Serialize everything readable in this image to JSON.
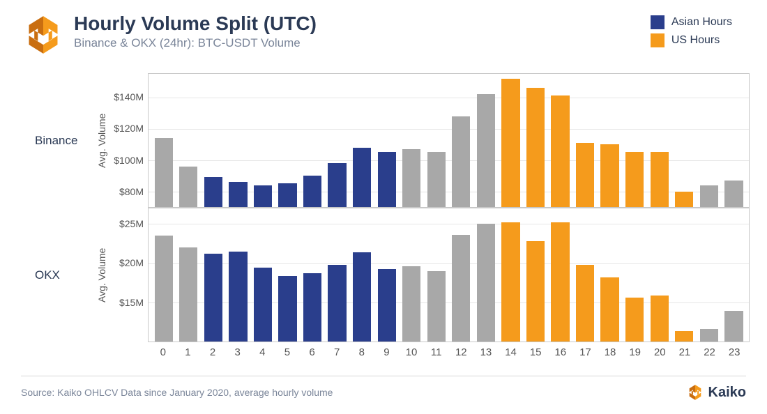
{
  "header": {
    "title": "Hourly Volume Split (UTC)",
    "subtitle": "Binance & OKX (24hr): BTC-USDT Volume"
  },
  "legend": [
    {
      "label": "Asian Hours",
      "color": "#2a3e8c"
    },
    {
      "label": "US Hours",
      "color": "#f59b1c"
    }
  ],
  "colors": {
    "neutral": "#a8a8a8",
    "asian": "#2a3e8c",
    "us": "#f59b1c",
    "axis": "#c8c8c8",
    "grid": "#e6e6e6",
    "text": "#2b3a55",
    "muted": "#7a8599",
    "background": "#ffffff"
  },
  "chart": {
    "type": "bar",
    "bar_width": 0.74,
    "hours": [
      0,
      1,
      2,
      3,
      4,
      5,
      6,
      7,
      8,
      9,
      10,
      11,
      12,
      13,
      14,
      15,
      16,
      17,
      18,
      19,
      20,
      21,
      22,
      23
    ],
    "category_map": {
      "0": "neutral",
      "1": "neutral",
      "2": "asian",
      "3": "asian",
      "4": "asian",
      "5": "asian",
      "6": "asian",
      "7": "asian",
      "8": "asian",
      "9": "asian",
      "10": "neutral",
      "11": "neutral",
      "12": "neutral",
      "13": "neutral",
      "14": "us",
      "15": "us",
      "16": "us",
      "17": "us",
      "18": "us",
      "19": "us",
      "20": "us",
      "21": "us",
      "22": "neutral",
      "23": "neutral"
    },
    "panels": [
      {
        "name": "Binance",
        "ylabel": "Avg. Volume",
        "ylim": [
          70,
          155
        ],
        "yticks": [
          80,
          100,
          120,
          140
        ],
        "ytick_labels": [
          "$80M",
          "$100M",
          "$120M",
          "$140M"
        ],
        "values": [
          114,
          96,
          89,
          86,
          84,
          85,
          90,
          98,
          108,
          105,
          107,
          105,
          128,
          142,
          152,
          146,
          141,
          111,
          110,
          105,
          105,
          80,
          84,
          87
        ]
      },
      {
        "name": "OKX",
        "ylabel": "Avg. Volume",
        "ylim": [
          10,
          27
        ],
        "yticks": [
          15,
          20,
          25
        ],
        "ytick_labels": [
          "$15M",
          "$20M",
          "$25M"
        ],
        "values": [
          23.5,
          22.0,
          21.2,
          21.5,
          19.4,
          18.4,
          18.7,
          19.8,
          21.4,
          19.3,
          19.6,
          19.0,
          23.6,
          25.0,
          25.2,
          22.8,
          25.2,
          19.8,
          18.2,
          15.6,
          15.9,
          11.3,
          11.6,
          13.9
        ]
      }
    ]
  },
  "typography": {
    "title_fontsize": 28,
    "subtitle_fontsize": 17,
    "legend_fontsize": 16,
    "panel_label_fontsize": 17,
    "tick_fontsize": 14,
    "source_fontsize": 14
  },
  "footer": {
    "source": "Source: Kaiko OHLCV Data since January 2020, average hourly volume",
    "brand": "Kaiko"
  },
  "brand_colors": {
    "primary": "#f59b1c",
    "dark": "#c96e10"
  }
}
